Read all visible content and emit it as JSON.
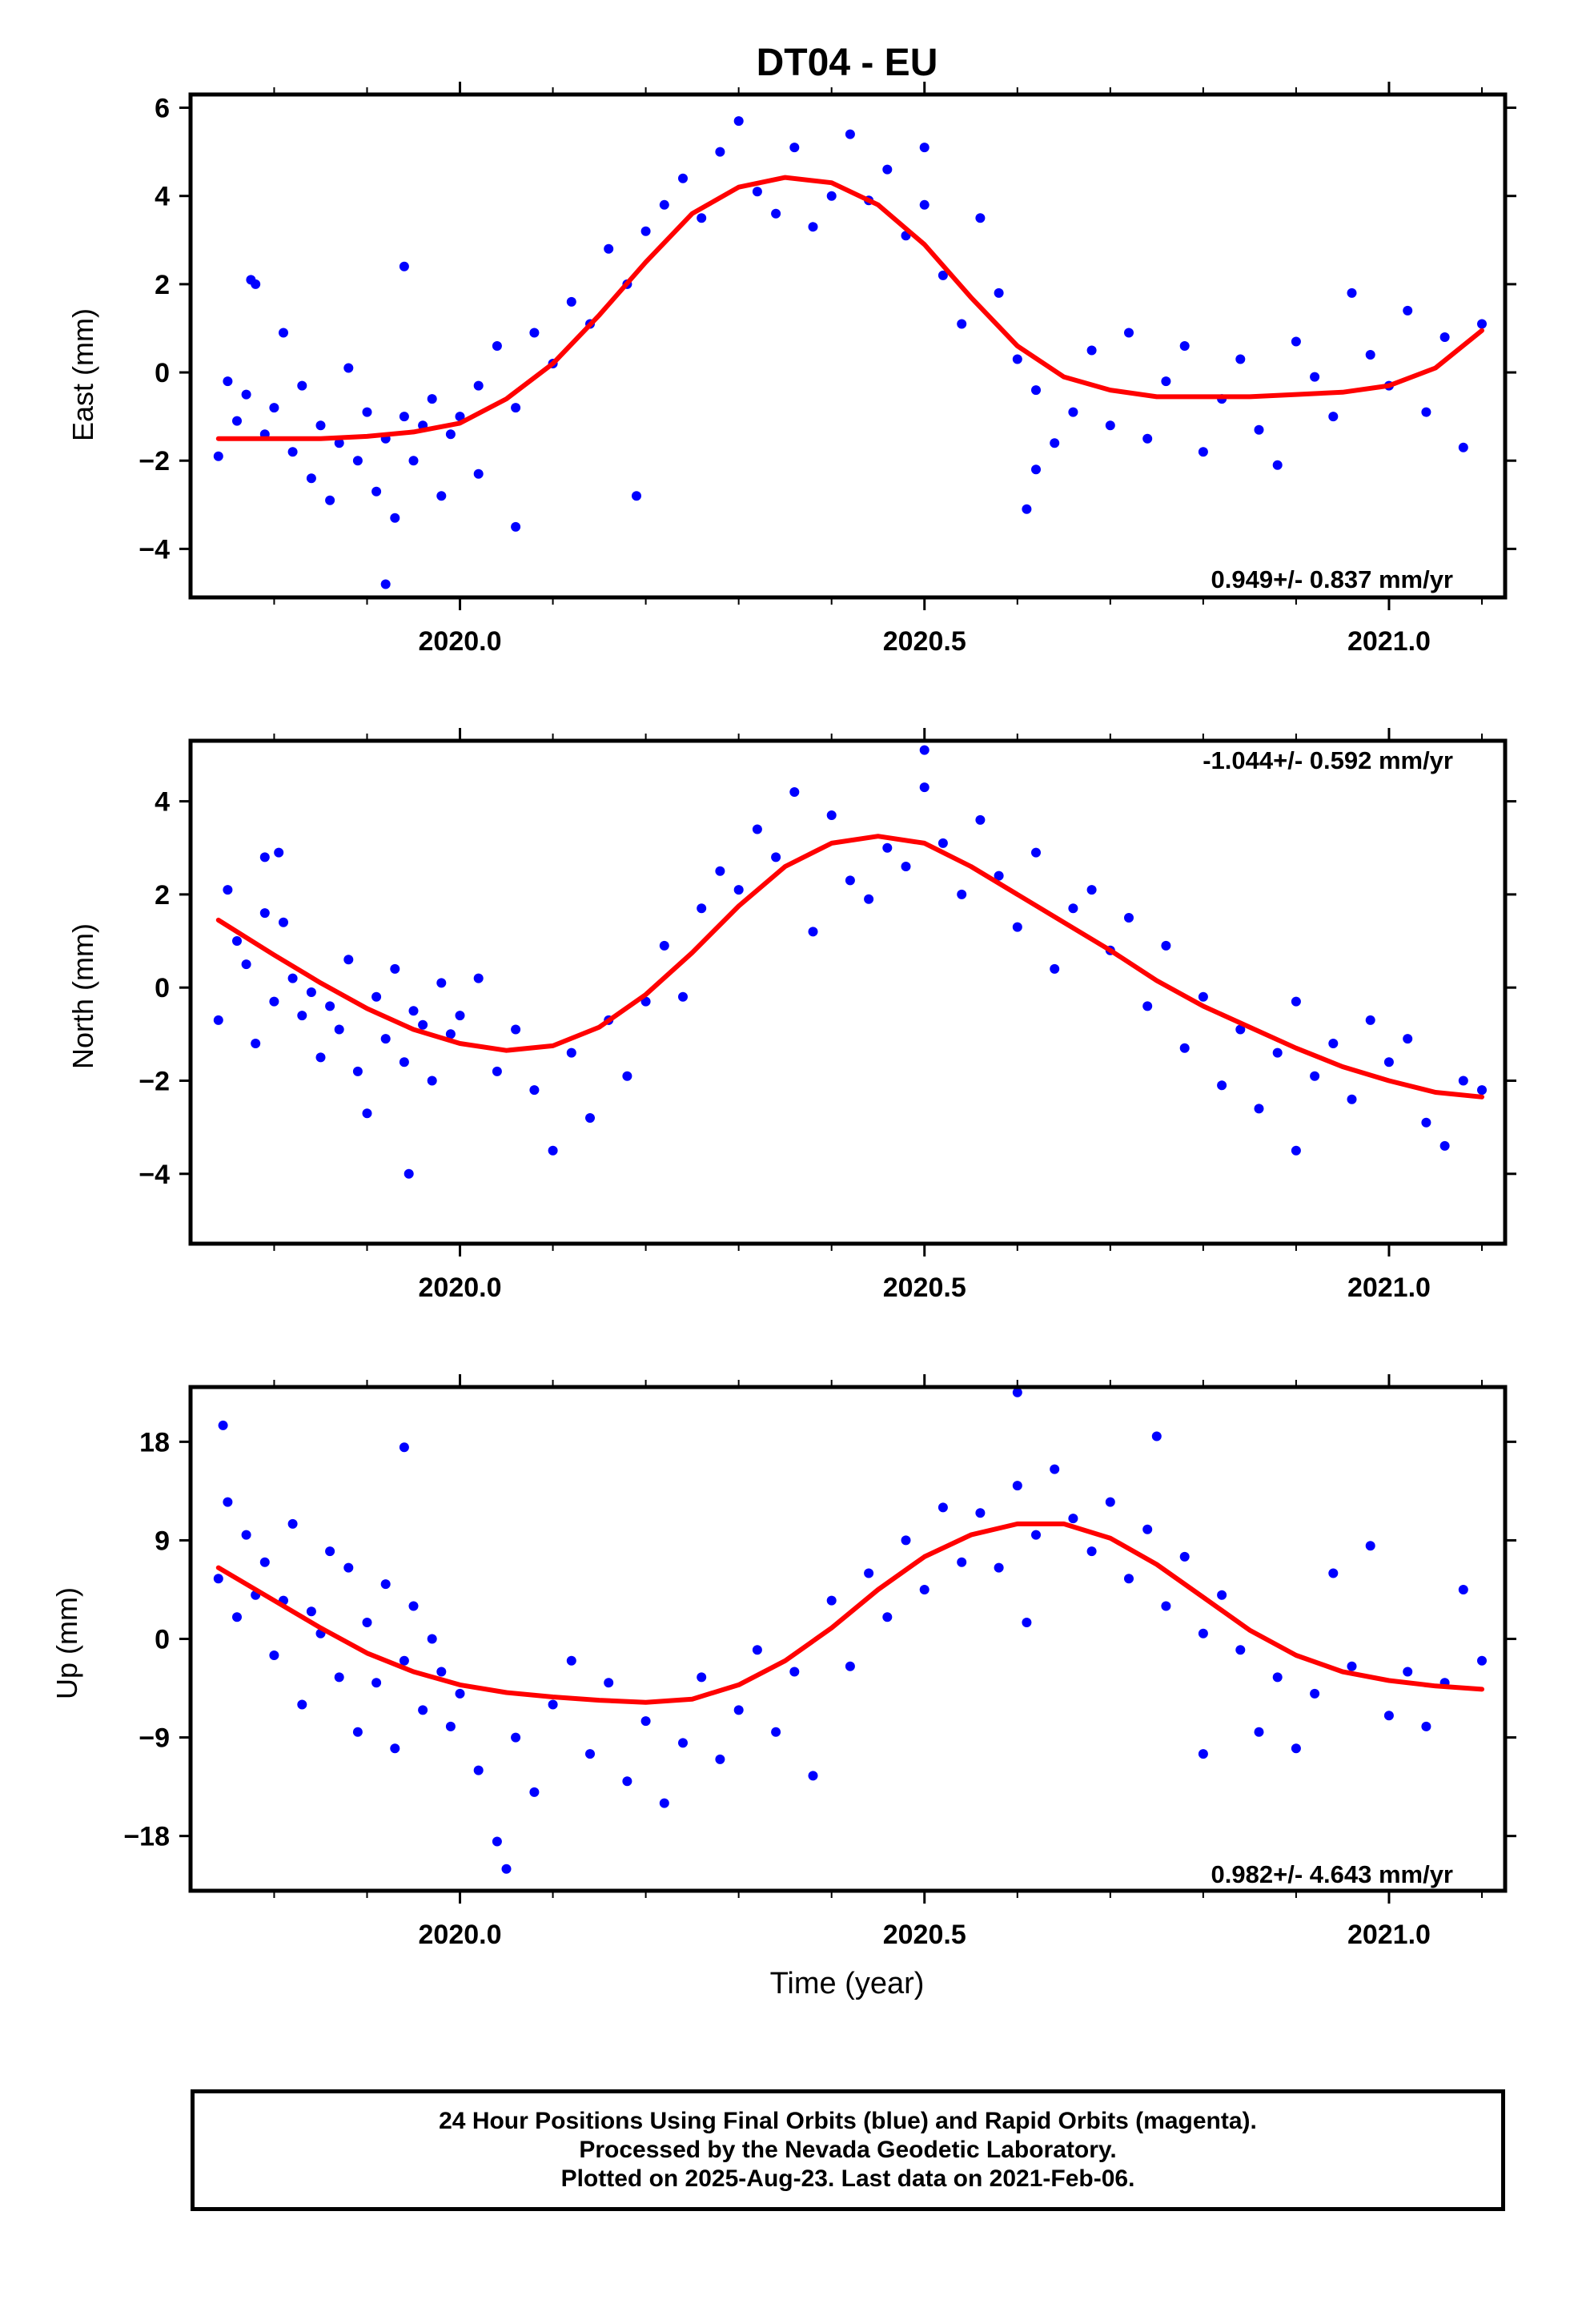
{
  "title": "DT04 - EU",
  "xlabel": "Time (year)",
  "footer": {
    "line1": "24 Hour Positions Using Final Orbits (blue) and Rapid Orbits (magenta).",
    "line2": "Processed by the Nevada Geodetic Laboratory.",
    "line3": "Plotted on 2025-Aug-23. Last data on 2021-Feb-06."
  },
  "colors": {
    "points": "#0000ff",
    "fit": "#ff0000",
    "axes": "#000000"
  },
  "chart_data": [
    {
      "type": "scatter",
      "ylabel": "East (mm)",
      "rate_label": "0.949+/- 0.837 mm/yr",
      "rate_position": "bottom-right",
      "xlim": [
        2019.71,
        2021.125
      ],
      "ylim": [
        -5.1,
        6.3
      ],
      "xticks": [
        2020.0,
        2020.5,
        2021.0
      ],
      "xtick_labels": [
        "2020.0",
        "2020.5",
        "2021.0"
      ],
      "yticks": [
        -4,
        -2,
        0,
        2,
        4,
        6
      ],
      "ytick_labels": [
        "−4",
        "−2",
        "0",
        "2",
        "4",
        "6"
      ],
      "grid": false,
      "fit_curve": {
        "x": [
          2019.74,
          2019.8,
          2019.85,
          2019.9,
          2019.95,
          2020.0,
          2020.05,
          2020.1,
          2020.15,
          2020.2,
          2020.25,
          2020.3,
          2020.35,
          2020.4,
          2020.45,
          2020.5,
          2020.55,
          2020.6,
          2020.65,
          2020.7,
          2020.75,
          2020.8,
          2020.85,
          2020.9,
          2020.95,
          2021.0,
          2021.05,
          2021.1
        ],
        "y": [
          -1.5,
          -1.5,
          -1.5,
          -1.45,
          -1.35,
          -1.15,
          -0.6,
          0.2,
          1.3,
          2.5,
          3.6,
          4.2,
          4.42,
          4.3,
          3.8,
          2.9,
          1.7,
          0.6,
          -0.1,
          -0.4,
          -0.55,
          -0.55,
          -0.55,
          -0.5,
          -0.45,
          -0.3,
          0.1,
          0.95
        ]
      },
      "series": [
        {
          "x": [
            2019.74,
            2019.75,
            2019.76,
            2019.77,
            2019.78,
            2019.79,
            2019.8,
            2019.81,
            2019.82,
            2019.83,
            2019.84,
            2019.85,
            2019.86,
            2019.87,
            2019.88,
            2019.89,
            2019.9,
            2019.91,
            2019.92,
            2019.93,
            2019.94,
            2019.95,
            2019.96,
            2019.97,
            2019.98,
            2019.99,
            2020.0,
            2020.02,
            2020.04,
            2020.06,
            2020.08,
            2020.1,
            2020.12,
            2020.14,
            2020.16,
            2020.18,
            2020.2,
            2020.22,
            2020.24,
            2020.26,
            2020.28,
            2020.3,
            2020.32,
            2020.34,
            2020.36,
            2020.38,
            2020.4,
            2020.42,
            2020.44,
            2020.46,
            2020.48,
            2020.5,
            2020.52,
            2020.54,
            2020.56,
            2020.58,
            2020.6,
            2020.62,
            2020.64,
            2020.66,
            2020.68,
            2020.7,
            2020.72,
            2020.74,
            2020.76,
            2020.78,
            2020.8,
            2020.82,
            2020.84,
            2020.86,
            2020.88,
            2020.9,
            2020.92,
            2020.94,
            2020.96,
            2020.98,
            2021.0,
            2021.02,
            2021.04,
            2021.06,
            2021.08,
            2021.1,
            2019.775,
            2019.92,
            2019.94,
            2020.19,
            2020.61,
            2020.62,
            2020.5,
            2020.02,
            2020.06
          ],
          "y": [
            -1.9,
            -0.2,
            -1.1,
            -0.5,
            2.0,
            -1.4,
            -0.8,
            0.9,
            -1.8,
            -0.3,
            -2.4,
            -1.2,
            -2.9,
            -1.6,
            0.1,
            -2.0,
            -0.9,
            -2.7,
            -1.5,
            -3.3,
            -1.0,
            -2.0,
            -1.2,
            -0.6,
            -2.8,
            -1.4,
            -1.0,
            -0.3,
            0.6,
            -0.8,
            0.9,
            0.2,
            1.6,
            1.1,
            2.8,
            2.0,
            3.2,
            3.8,
            4.4,
            3.5,
            5.0,
            5.7,
            4.1,
            3.6,
            5.1,
            3.3,
            4.0,
            5.4,
            3.9,
            4.6,
            3.1,
            3.8,
            2.2,
            1.1,
            3.5,
            1.8,
            0.3,
            -0.4,
            -1.6,
            -0.9,
            0.5,
            -1.2,
            0.9,
            -1.5,
            -0.2,
            0.6,
            -1.8,
            -0.6,
            0.3,
            -1.3,
            -2.1,
            0.7,
            -0.1,
            -1.0,
            1.8,
            0.4,
            -0.3,
            1.4,
            -0.9,
            0.8,
            -1.7,
            1.1,
            2.1,
            -4.8,
            2.4,
            -2.8,
            -3.1,
            -2.2,
            5.1,
            -2.3,
            -3.5
          ]
        }
      ]
    },
    {
      "type": "scatter",
      "ylabel": "North (mm)",
      "rate_label": "-1.044+/- 0.592 mm/yr",
      "rate_position": "top-right",
      "xlim": [
        2019.71,
        2021.125
      ],
      "ylim": [
        -5.5,
        5.3
      ],
      "xticks": [
        2020.0,
        2020.5,
        2021.0
      ],
      "xtick_labels": [
        "2020.0",
        "2020.5",
        "2021.0"
      ],
      "yticks": [
        -4,
        -2,
        0,
        2,
        4
      ],
      "ytick_labels": [
        "−4",
        "−2",
        "0",
        "2",
        "4"
      ],
      "grid": false,
      "fit_curve": {
        "x": [
          2019.74,
          2019.8,
          2019.85,
          2019.9,
          2019.95,
          2020.0,
          2020.05,
          2020.1,
          2020.15,
          2020.2,
          2020.25,
          2020.3,
          2020.35,
          2020.4,
          2020.45,
          2020.5,
          2020.55,
          2020.6,
          2020.65,
          2020.7,
          2020.75,
          2020.8,
          2020.85,
          2020.9,
          2020.95,
          2021.0,
          2021.05,
          2021.1
        ],
        "y": [
          1.45,
          0.7,
          0.1,
          -0.45,
          -0.9,
          -1.2,
          -1.35,
          -1.25,
          -0.85,
          -0.15,
          0.75,
          1.75,
          2.6,
          3.1,
          3.25,
          3.1,
          2.6,
          2.0,
          1.4,
          0.8,
          0.15,
          -0.4,
          -0.85,
          -1.3,
          -1.7,
          -2.0,
          -2.25,
          -2.35
        ]
      },
      "series": [
        {
          "x": [
            2019.74,
            2019.75,
            2019.76,
            2019.77,
            2019.78,
            2019.79,
            2019.8,
            2019.81,
            2019.82,
            2019.83,
            2019.84,
            2019.85,
            2019.86,
            2019.87,
            2019.88,
            2019.89,
            2019.9,
            2019.91,
            2019.92,
            2019.93,
            2019.94,
            2019.95,
            2019.96,
            2019.97,
            2019.98,
            2019.99,
            2020.0,
            2020.02,
            2020.04,
            2020.06,
            2020.08,
            2020.1,
            2020.12,
            2020.14,
            2020.16,
            2020.18,
            2020.2,
            2020.22,
            2020.24,
            2020.26,
            2020.28,
            2020.3,
            2020.32,
            2020.34,
            2020.36,
            2020.38,
            2020.4,
            2020.42,
            2020.44,
            2020.46,
            2020.48,
            2020.5,
            2020.52,
            2020.54,
            2020.56,
            2020.58,
            2020.6,
            2020.62,
            2020.64,
            2020.66,
            2020.68,
            2020.7,
            2020.72,
            2020.74,
            2020.76,
            2020.78,
            2020.8,
            2020.82,
            2020.84,
            2020.86,
            2020.88,
            2020.9,
            2020.92,
            2020.94,
            2020.96,
            2020.98,
            2021.0,
            2021.02,
            2021.04,
            2021.06,
            2021.08,
            2021.1,
            2019.79,
            2019.805,
            2019.945,
            2020.5,
            2020.9
          ],
          "y": [
            -0.7,
            2.1,
            1.0,
            0.5,
            -1.2,
            1.6,
            -0.3,
            1.4,
            0.2,
            -0.6,
            -0.1,
            -1.5,
            -0.4,
            -0.9,
            0.6,
            -1.8,
            -2.7,
            -0.2,
            -1.1,
            0.4,
            -1.6,
            -0.5,
            -0.8,
            -2.0,
            0.1,
            -1.0,
            -0.6,
            0.2,
            -1.8,
            -0.9,
            -2.2,
            -3.5,
            -1.4,
            -2.8,
            -0.7,
            -1.9,
            -0.3,
            0.9,
            -0.2,
            1.7,
            2.5,
            2.1,
            3.4,
            2.8,
            4.2,
            1.2,
            3.7,
            2.3,
            1.9,
            3.0,
            2.6,
            4.3,
            3.1,
            2.0,
            3.6,
            2.4,
            1.3,
            2.9,
            0.4,
            1.7,
            2.1,
            0.8,
            1.5,
            -0.4,
            0.9,
            -1.3,
            -0.2,
            -2.1,
            -0.9,
            -2.6,
            -1.4,
            -0.3,
            -1.9,
            -1.2,
            -2.4,
            -0.7,
            -1.6,
            -1.1,
            -2.9,
            -3.4,
            -2.0,
            -2.2,
            2.8,
            2.9,
            -4.0,
            5.1,
            -3.5
          ]
        }
      ]
    },
    {
      "type": "scatter",
      "ylabel": "Up (mm)",
      "rate_label": "0.982+/- 4.643 mm/yr",
      "rate_position": "bottom-right",
      "xlim": [
        2019.71,
        2021.125
      ],
      "ylim": [
        -23,
        23
      ],
      "xticks": [
        2020.0,
        2020.5,
        2021.0
      ],
      "xtick_labels": [
        "2020.0",
        "2020.5",
        "2021.0"
      ],
      "yticks": [
        -18,
        -9,
        0,
        9,
        18
      ],
      "ytick_labels": [
        "−18",
        "−9",
        "0",
        "9",
        "18"
      ],
      "grid": false,
      "fit_curve": {
        "x": [
          2019.74,
          2019.8,
          2019.85,
          2019.9,
          2019.95,
          2020.0,
          2020.05,
          2020.1,
          2020.15,
          2020.2,
          2020.25,
          2020.3,
          2020.35,
          2020.4,
          2020.45,
          2020.5,
          2020.55,
          2020.6,
          2020.65,
          2020.7,
          2020.75,
          2020.8,
          2020.85,
          2020.9,
          2020.95,
          2021.0,
          2021.05,
          2021.1
        ],
        "y": [
          6.5,
          3.5,
          1.0,
          -1.3,
          -3.0,
          -4.2,
          -4.9,
          -5.3,
          -5.6,
          -5.8,
          -5.5,
          -4.2,
          -2.0,
          1.0,
          4.5,
          7.5,
          9.5,
          10.5,
          10.5,
          9.2,
          6.8,
          3.8,
          0.8,
          -1.5,
          -3.0,
          -3.8,
          -4.3,
          -4.6
        ]
      },
      "series": [
        {
          "x": [
            2019.74,
            2019.75,
            2019.76,
            2019.77,
            2019.78,
            2019.79,
            2019.8,
            2019.81,
            2019.82,
            2019.83,
            2019.84,
            2019.85,
            2019.86,
            2019.87,
            2019.88,
            2019.89,
            2019.9,
            2019.91,
            2019.92,
            2019.93,
            2019.94,
            2019.95,
            2019.96,
            2019.97,
            2019.98,
            2019.99,
            2020.0,
            2020.02,
            2020.04,
            2020.06,
            2020.08,
            2020.1,
            2020.12,
            2020.14,
            2020.16,
            2020.18,
            2020.2,
            2020.22,
            2020.24,
            2020.26,
            2020.28,
            2020.3,
            2020.32,
            2020.34,
            2020.36,
            2020.38,
            2020.4,
            2020.42,
            2020.44,
            2020.46,
            2020.48,
            2020.5,
            2020.52,
            2020.54,
            2020.56,
            2020.58,
            2020.6,
            2020.62,
            2020.64,
            2020.66,
            2020.68,
            2020.7,
            2020.72,
            2020.74,
            2020.76,
            2020.78,
            2020.8,
            2020.82,
            2020.84,
            2020.86,
            2020.88,
            2020.9,
            2020.92,
            2020.94,
            2020.96,
            2020.98,
            2021.0,
            2021.02,
            2021.04,
            2021.06,
            2021.08,
            2021.1,
            2019.745,
            2019.94,
            2020.05,
            2020.6,
            2020.61,
            2020.75,
            2020.8
          ],
          "y": [
            5.5,
            12.5,
            2.0,
            9.5,
            4.0,
            7.0,
            -1.5,
            3.5,
            10.5,
            -6.0,
            2.5,
            0.5,
            8.0,
            -3.5,
            6.5,
            -8.5,
            1.5,
            -4.0,
            5.0,
            -10.0,
            -2.0,
            3.0,
            -6.5,
            0.0,
            -3.0,
            -8.0,
            -5.0,
            -12.0,
            -18.5,
            -9.0,
            -14.0,
            -6.0,
            -2.0,
            -10.5,
            -4.0,
            -13.0,
            -7.5,
            -15.0,
            -9.5,
            -3.5,
            -11.0,
            -6.5,
            -1.0,
            -8.5,
            -3.0,
            -12.5,
            3.5,
            -2.5,
            6.0,
            2.0,
            9.0,
            4.5,
            12.0,
            7.0,
            11.5,
            6.5,
            14.0,
            9.5,
            15.5,
            11.0,
            8.0,
            12.5,
            5.5,
            10.0,
            3.0,
            7.5,
            0.5,
            4.0,
            -1.0,
            -8.5,
            -3.5,
            -10.0,
            -5.0,
            6.0,
            -2.5,
            8.5,
            -7.0,
            -3.0,
            -8.0,
            -4.0,
            4.5,
            -2.0,
            19.5,
            17.5,
            -21.0,
            22.5,
            1.5,
            18.5,
            -10.5
          ]
        }
      ]
    }
  ]
}
